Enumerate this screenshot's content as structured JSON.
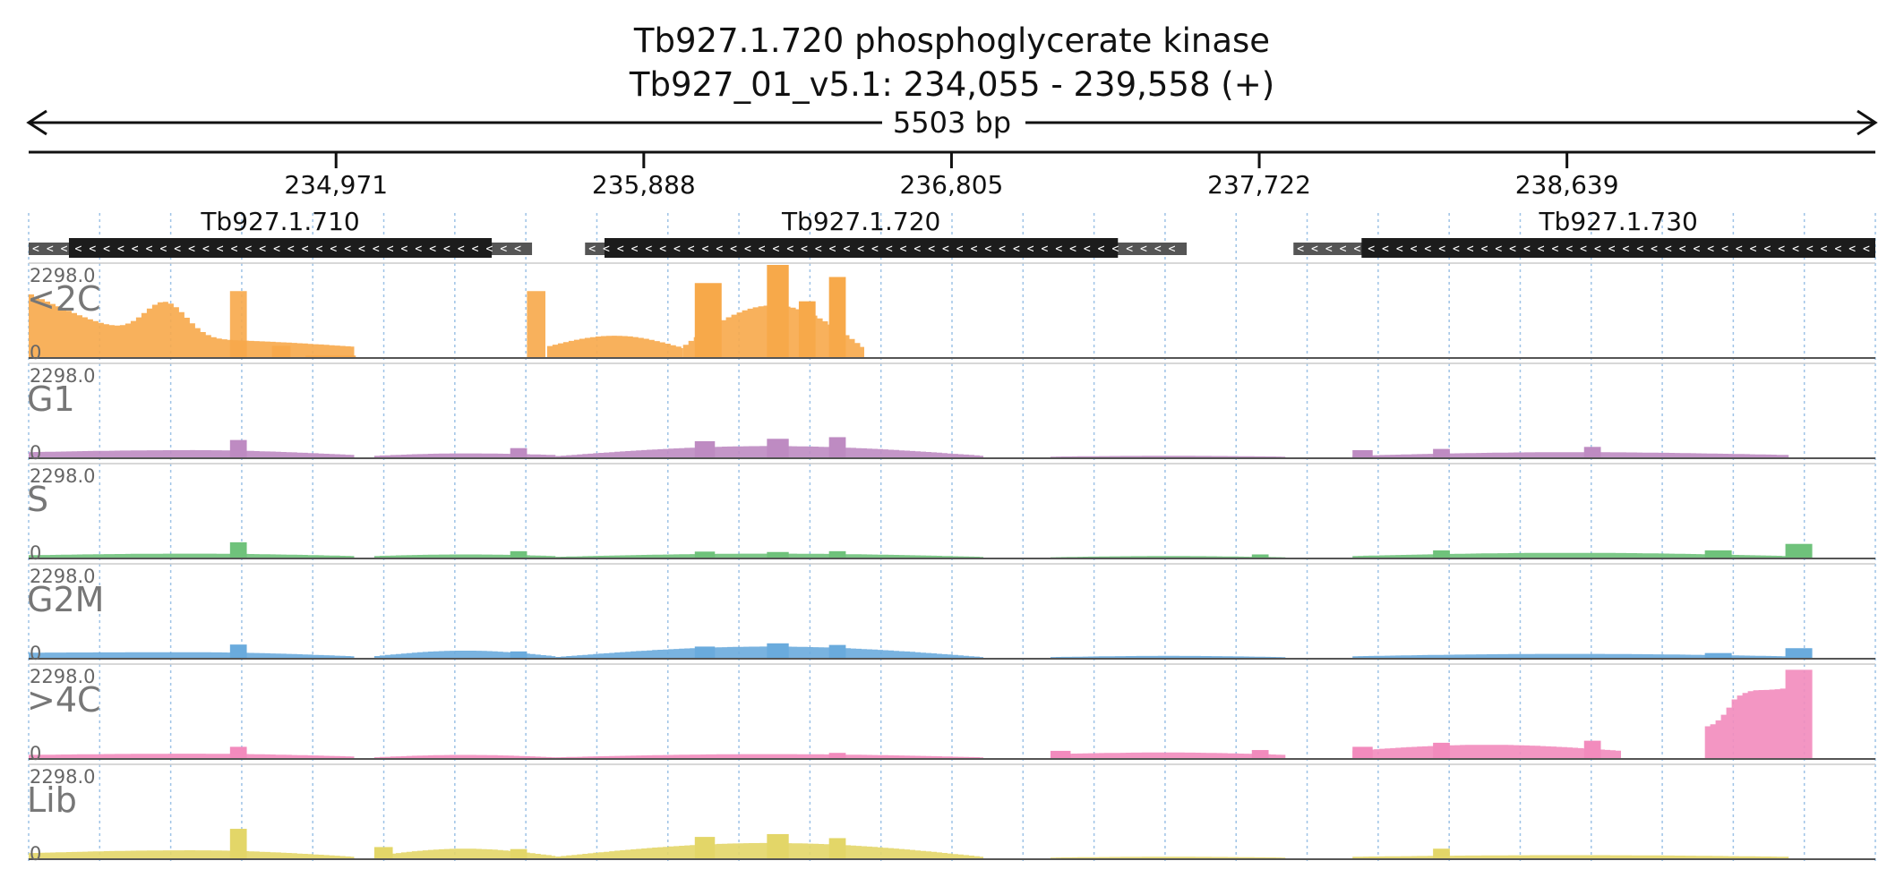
{
  "title": {
    "line1": "Tb927.1.720  phosphoglycerate kinase",
    "line2": "Tb927_01_v5.1: 234,055 - 239,558 (+)"
  },
  "span": {
    "label": "5503 bp"
  },
  "colors": {
    "<2C": "#f7a94a",
    "G1": "#be8bc2",
    "S": "#6fc27b",
    "G2M": "#6aabdd",
    ">4C": "#f28bbd",
    "Lib": "#e3d668",
    "gene": "#1c1c1c",
    "utr": "#555555",
    "grid": "#9ec3e6"
  },
  "chart_data": {
    "type": "area",
    "x_range": [
      234055,
      239558
    ],
    "xticks": [
      234971,
      235888,
      236805,
      237722,
      238639
    ],
    "xtick_labels": [
      "234,971",
      "235,888",
      "236,805",
      "237,722",
      "238,639"
    ],
    "genes": [
      {
        "name": "Tb927.1.710",
        "start": 234055,
        "end": 235555,
        "cds_start": 234175,
        "cds_end": 235435,
        "strand": "-"
      },
      {
        "name": "Tb927.1.720",
        "start": 235713,
        "end": 237506,
        "cds_start": 235771,
        "cds_end": 237301,
        "strand": "-"
      },
      {
        "name": "Tb927.1.730",
        "start": 237824,
        "end": 239558,
        "cds_start": 238027,
        "cds_end": 239558,
        "strand": "-"
      }
    ],
    "tracks": [
      {
        "name": "<2C",
        "ymax_label": "2298.0",
        "ymin_label": "0",
        "ylim": [
          0,
          2298
        ],
        "segments": [
          {
            "start": 234055,
            "end": 235025,
            "y0": 1600,
            "mid": 450,
            "y1": 280,
            "bump_at": 234463,
            "bump": 900
          },
          {
            "start": 234655,
            "end": 234705,
            "flat": 1650
          },
          {
            "start": 234780,
            "end": 234835,
            "flat": 300
          },
          {
            "start": 234880,
            "end": 235030,
            "flat": 60
          },
          {
            "start": 235540,
            "end": 235595,
            "flat": 1650
          },
          {
            "start": 235600,
            "end": 236005,
            "y0": 280,
            "mid": 550,
            "y1": 250
          },
          {
            "start": 236005,
            "end": 236545,
            "y0": 280,
            "mid": 1300,
            "y1": 250,
            "spikes": [
              [
                236040,
                236120,
                1850
              ],
              [
                236255,
                236320,
                2298
              ],
              [
                236350,
                236400,
                1400
              ],
              [
                236440,
                236490,
                2000
              ]
            ]
          }
        ]
      },
      {
        "name": "G1",
        "ymax_label": "2298.0",
        "ymin_label": "0",
        "ylim": [
          0,
          2298
        ],
        "segments": [
          {
            "start": 234055,
            "end": 235025,
            "y0": 150,
            "mid": 200,
            "y1": 80,
            "blocks": [
              [
                234655,
                234705,
                450
              ]
            ]
          },
          {
            "start": 235085,
            "end": 235625,
            "y0": 60,
            "mid": 120,
            "y1": 80,
            "blocks": [
              [
                235490,
                235540,
                250
              ]
            ]
          },
          {
            "start": 235625,
            "end": 236900,
            "y0": 50,
            "mid": 300,
            "y1": 60,
            "blocks": [
              [
                236040,
                236100,
                420
              ],
              [
                236255,
                236320,
                480
              ],
              [
                236440,
                236490,
                520
              ]
            ]
          },
          {
            "start": 237100,
            "end": 237800,
            "y0": 40,
            "mid": 60,
            "y1": 40
          },
          {
            "start": 238000,
            "end": 239300,
            "y0": 60,
            "mid": 150,
            "y1": 80,
            "blocks": [
              [
                238000,
                238060,
                200
              ],
              [
                238240,
                238290,
                230
              ],
              [
                238690,
                238740,
                280
              ]
            ]
          }
        ]
      },
      {
        "name": "S",
        "ymax_label": "2298.0",
        "ymin_label": "0",
        "ylim": [
          0,
          2298
        ],
        "segments": [
          {
            "start": 234055,
            "end": 235025,
            "y0": 80,
            "mid": 120,
            "y1": 60,
            "blocks": [
              [
                234655,
                234705,
                400
              ]
            ]
          },
          {
            "start": 235085,
            "end": 235625,
            "y0": 60,
            "mid": 100,
            "y1": 60,
            "blocks": [
              [
                235490,
                235540,
                180
              ]
            ]
          },
          {
            "start": 235625,
            "end": 236900,
            "y0": 40,
            "mid": 120,
            "y1": 40,
            "blocks": [
              [
                236040,
                236100,
                170
              ],
              [
                236255,
                236320,
                160
              ],
              [
                236440,
                236490,
                180
              ]
            ]
          },
          {
            "start": 237100,
            "end": 237800,
            "y0": 30,
            "mid": 60,
            "y1": 30,
            "blocks": [
              [
                237700,
                237750,
                100
              ]
            ]
          },
          {
            "start": 238000,
            "end": 239300,
            "y0": 60,
            "mid": 140,
            "y1": 60,
            "blocks": [
              [
                238240,
                238290,
                200
              ],
              [
                239050,
                239130,
                200
              ],
              [
                239290,
                239370,
                360
              ]
            ]
          }
        ]
      },
      {
        "name": "G2M",
        "ymax_label": "2298.0",
        "ymin_label": "0",
        "ylim": [
          0,
          2298
        ],
        "segments": [
          {
            "start": 234055,
            "end": 235025,
            "y0": 150,
            "mid": 160,
            "y1": 60,
            "blocks": [
              [
                234655,
                234705,
                350
              ]
            ]
          },
          {
            "start": 235085,
            "end": 235625,
            "y0": 60,
            "mid": 200,
            "y1": 60,
            "blocks": [
              [
                235490,
                235540,
                180
              ]
            ]
          },
          {
            "start": 235625,
            "end": 236900,
            "y0": 40,
            "mid": 300,
            "y1": 40,
            "blocks": [
              [
                236040,
                236100,
                300
              ],
              [
                236255,
                236320,
                380
              ],
              [
                236440,
                236490,
                340
              ]
            ]
          },
          {
            "start": 237100,
            "end": 237800,
            "y0": 40,
            "mid": 70,
            "y1": 40
          },
          {
            "start": 238000,
            "end": 239300,
            "y0": 60,
            "mid": 120,
            "y1": 60,
            "blocks": [
              [
                239050,
                239130,
                140
              ],
              [
                239290,
                239370,
                260
              ]
            ]
          }
        ]
      },
      {
        "name": ">4C",
        "ymax_label": "2298.0",
        "ymin_label": "0",
        "ylim": [
          0,
          2298
        ],
        "segments": [
          {
            "start": 234055,
            "end": 235025,
            "y0": 100,
            "mid": 130,
            "y1": 60,
            "blocks": [
              [
                234655,
                234705,
                300
              ]
            ]
          },
          {
            "start": 235085,
            "end": 235625,
            "y0": 40,
            "mid": 100,
            "y1": 40
          },
          {
            "start": 235625,
            "end": 236900,
            "y0": 40,
            "mid": 120,
            "y1": 40,
            "blocks": [
              [
                236440,
                236490,
                150
              ]
            ]
          },
          {
            "start": 237100,
            "end": 237800,
            "y0": 120,
            "mid": 160,
            "y1": 100,
            "blocks": [
              [
                237100,
                237160,
                200
              ],
              [
                237700,
                237750,
                220
              ]
            ]
          },
          {
            "start": 238000,
            "end": 238800,
            "y0": 200,
            "mid": 350,
            "y1": 200,
            "blocks": [
              [
                238000,
                238060,
                300
              ],
              [
                238240,
                238290,
                400
              ],
              [
                238690,
                238740,
                450
              ]
            ]
          },
          {
            "start": 239050,
            "end": 239370,
            "y0": 800,
            "mid": 1700,
            "y1": 1850,
            "dip_at": 239140,
            "dip": 800,
            "rise_at": 239290,
            "rise": 2200
          }
        ]
      },
      {
        "name": "Lib",
        "ymax_label": "2298.0",
        "ymin_label": "0",
        "ylim": [
          0,
          2298
        ],
        "segments": [
          {
            "start": 234055,
            "end": 235025,
            "y0": 150,
            "mid": 220,
            "y1": 60,
            "blocks": [
              [
                234655,
                234705,
                750
              ]
            ]
          },
          {
            "start": 235085,
            "end": 235625,
            "y0": 80,
            "mid": 260,
            "y1": 80,
            "blocks": [
              [
                235085,
                235140,
                300
              ],
              [
                235490,
                235540,
                250
              ]
            ]
          },
          {
            "start": 235625,
            "end": 236900,
            "y0": 60,
            "mid": 400,
            "y1": 60,
            "blocks": [
              [
                236040,
                236100,
                550
              ],
              [
                236255,
                236320,
                620
              ],
              [
                236440,
                236490,
                520
              ]
            ]
          },
          {
            "start": 237100,
            "end": 237800,
            "y0": 40,
            "mid": 60,
            "y1": 40
          },
          {
            "start": 238000,
            "end": 239300,
            "y0": 60,
            "mid": 100,
            "y1": 60,
            "blocks": [
              [
                238240,
                238290,
                260
              ]
            ]
          }
        ]
      }
    ]
  }
}
